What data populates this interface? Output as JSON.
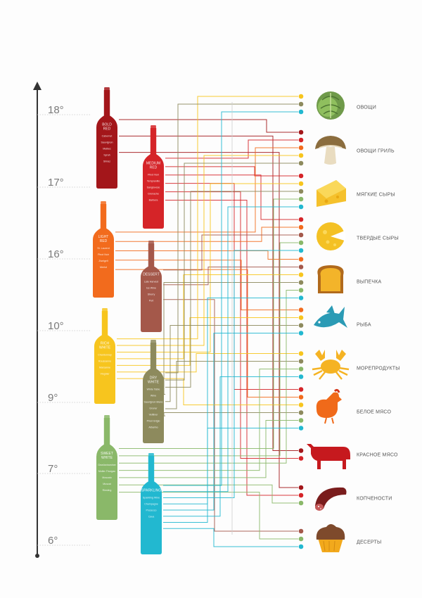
{
  "temperature_scale": {
    "labels": [
      "18°",
      "17°",
      "16°",
      "10°",
      "9°",
      "7°",
      "6°"
    ],
    "axis_color": "#333333"
  },
  "wines": [
    {
      "id": "bold-red",
      "title_lines": [
        "BOLD",
        "RED"
      ],
      "color": "#a3161a",
      "varieties": [
        "Cabernet",
        "Sauvignon",
        "Malbec",
        "Syrah",
        "Shiraz"
      ]
    },
    {
      "id": "light-red",
      "title_lines": [
        "LIGHT",
        "RED"
      ],
      "color": "#f26b1d",
      "varieties": [
        "St. Laurent",
        "Pinot Noir",
        "Zweigelt",
        "Merlot"
      ]
    },
    {
      "id": "rich-white",
      "title_lines": [
        "RICH",
        "WHITE"
      ],
      "color": "#f7c51e",
      "varieties": [
        "Chardonnay",
        "Roussanne",
        "Marsanne",
        "Viognier"
      ]
    },
    {
      "id": "sweet-white",
      "title_lines": [
        "SWEET",
        "WHITE"
      ],
      "color": "#8ab869",
      "varieties": [
        "Gewürztraminer",
        "Muller-Thurgau",
        "Moscato",
        "Muscat",
        "Riesling"
      ]
    },
    {
      "id": "medium-red",
      "title_lines": [
        "MEDIUM",
        "RED"
      ],
      "color": "#d52428",
      "varieties": [
        "Pinot Noir",
        "Tempranillo",
        "Sangiovese",
        "Grenache",
        "Barbera"
      ]
    },
    {
      "id": "dessert",
      "title_lines": [
        "DESSERT"
      ],
      "color": "#a4584a",
      "varieties": [
        "Late Harvest",
        "Ice Wine",
        "Sherry",
        "Port"
      ]
    },
    {
      "id": "dry-white",
      "title_lines": [
        "DRY",
        "WHITE"
      ],
      "color": "#8d8a5d",
      "varieties": [
        "White Table",
        "Wine",
        "Sauvignon Blanc",
        "Gruner",
        "Veltliner",
        "Pinot Grigio",
        "Albarino"
      ]
    },
    {
      "id": "sparkling",
      "title_lines": [
        "SPARKLING"
      ],
      "color": "#22b8d0",
      "varieties": [
        "Sparkling Wine",
        "Champagne",
        "Prosecco",
        "Cava"
      ]
    }
  ],
  "foods": [
    {
      "label": "ОВОЩИ",
      "icon": "cabbage-icon"
    },
    {
      "label": "ОВОЩИ ГРИЛЬ",
      "icon": "mushroom-icon"
    },
    {
      "label": "МЯГКИЕ СЫРЫ",
      "icon": "soft-cheese-icon"
    },
    {
      "label": "ТВЕРДЫЕ СЫРЫ",
      "icon": "hard-cheese-icon"
    },
    {
      "label": "ВЫПЕЧКА",
      "icon": "bread-icon"
    },
    {
      "label": "РЫБА",
      "icon": "fish-icon"
    },
    {
      "label": "МОРЕПРОДУКТЫ",
      "icon": "crab-icon"
    },
    {
      "label": "БЕЛОЕ МЯСО",
      "icon": "chicken-icon"
    },
    {
      "label": "КРАСНОЕ МЯСО",
      "icon": "cow-icon"
    },
    {
      "label": "КОПЧЕНОСТИ",
      "icon": "sausage-icon"
    },
    {
      "label": "ДЕСЕРТЫ",
      "icon": "cupcake-icon"
    }
  ],
  "pairings": {
    "bold-red": [
      1,
      8,
      9
    ],
    "medium-red": [
      1,
      2,
      3,
      7,
      8,
      9
    ],
    "light-red": [
      1,
      3,
      4,
      5,
      7
    ],
    "dessert": [
      3,
      4,
      10
    ],
    "rich-white": [
      0,
      1,
      2,
      4,
      5,
      6,
      7
    ],
    "dry-white": [
      0,
      1,
      2,
      4,
      5,
      6,
      7
    ],
    "sweet-white": [
      2,
      3,
      4,
      6,
      7,
      9,
      10
    ],
    "sparkling": [
      0,
      2,
      3,
      4,
      5,
      6,
      7,
      10
    ]
  }
}
